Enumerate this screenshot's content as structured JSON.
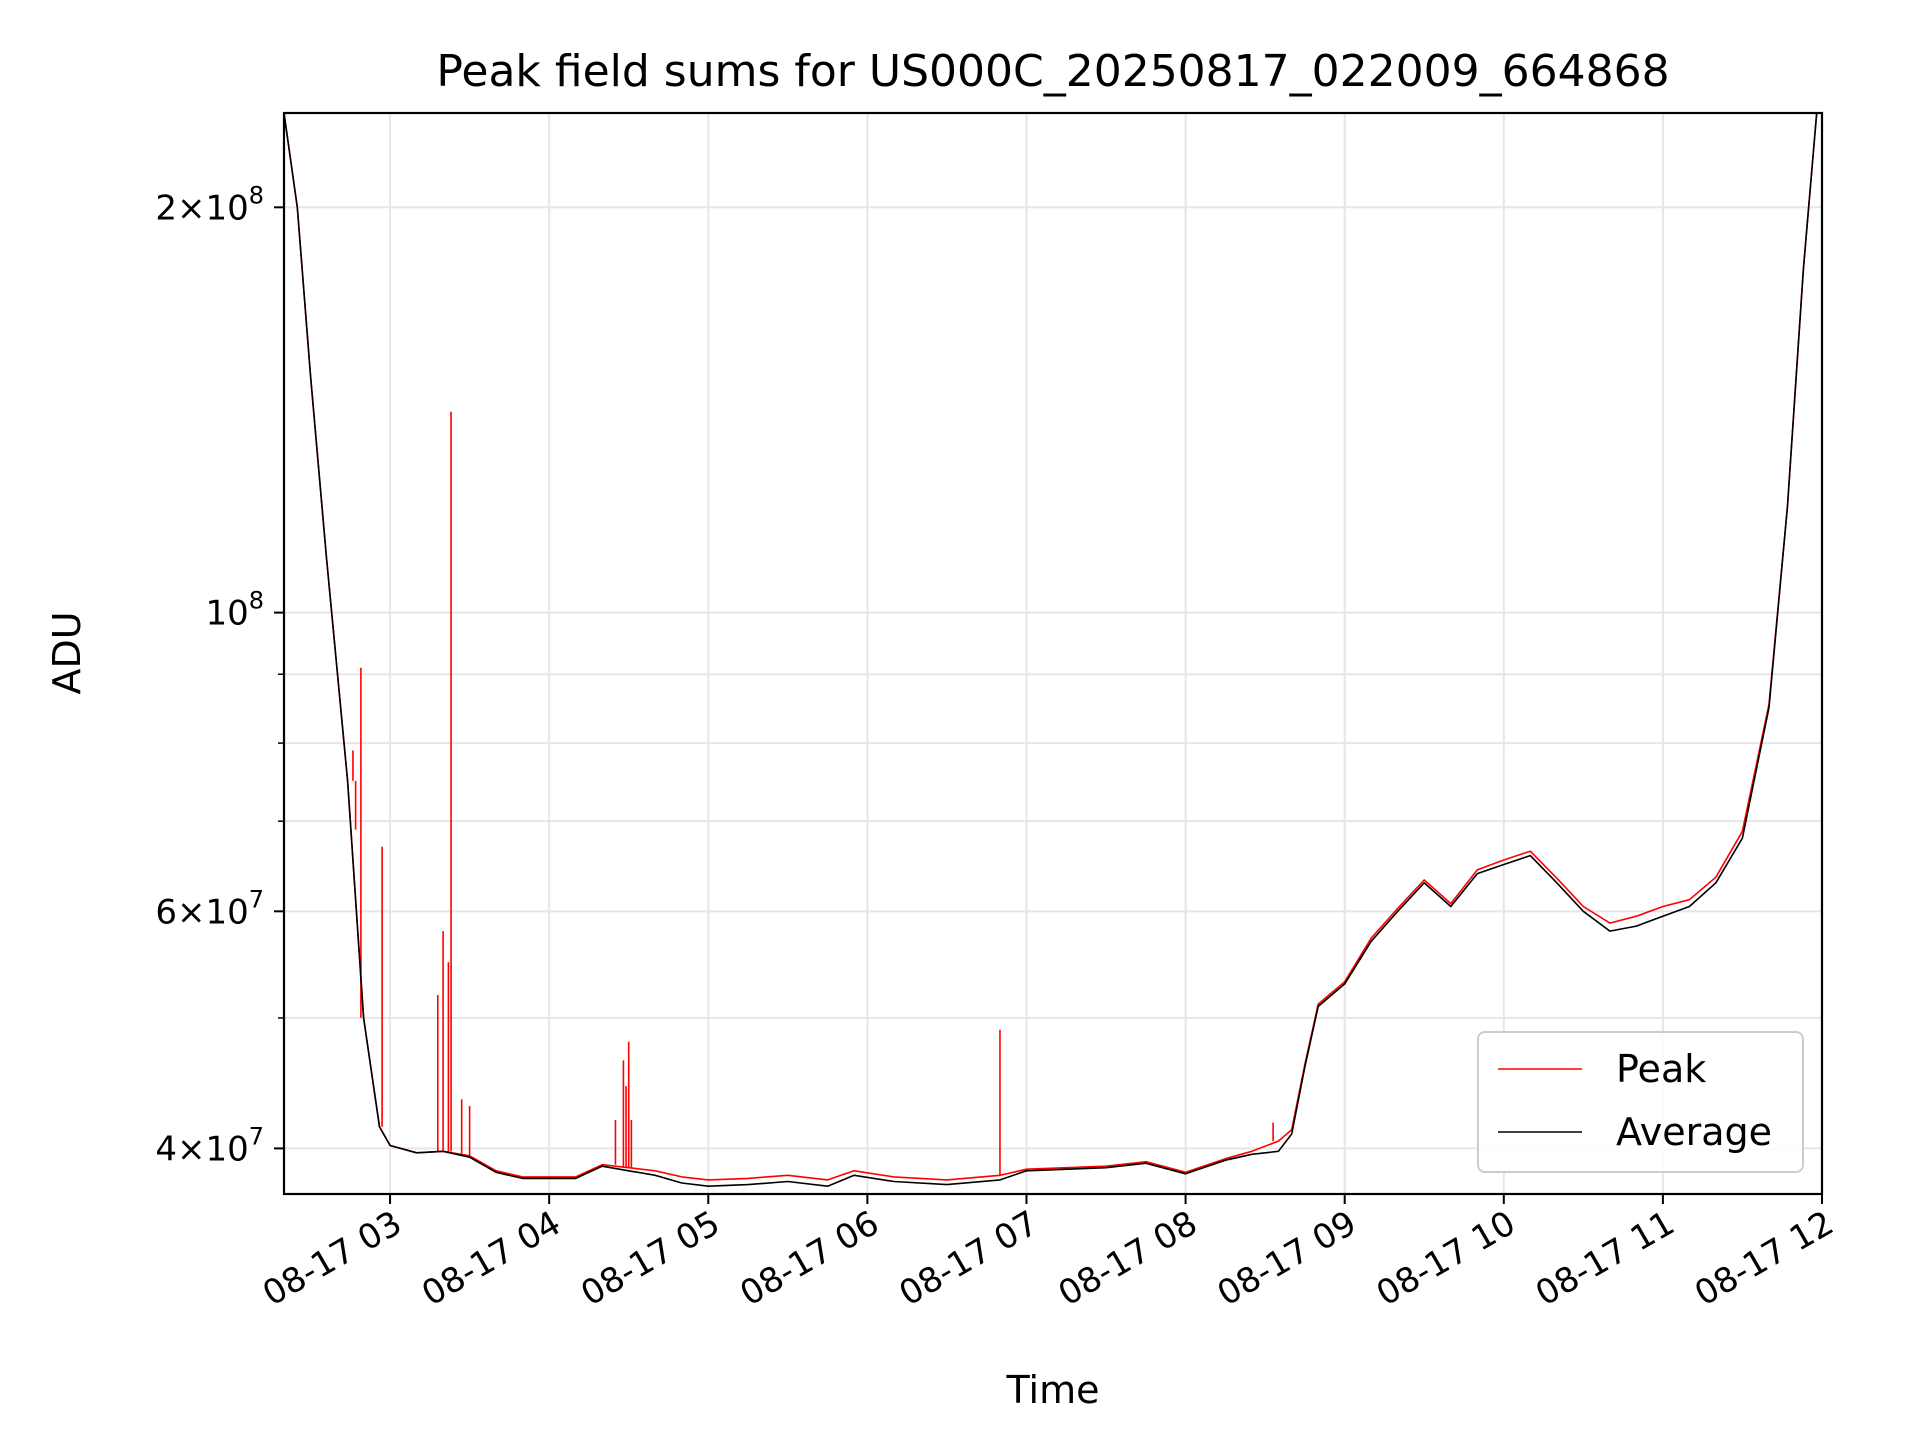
{
  "chart_data": {
    "type": "line",
    "title": "Peak field sums for US000C_20250817_022009_664868",
    "xlabel": "Time",
    "ylabel": "ADU",
    "yscale": "log",
    "grid": true,
    "legend_placement": "lower-right",
    "xlim": [
      "2025-08-17 02:20",
      "2025-08-17 12:00"
    ],
    "ylim": [
      37000000,
      235000000
    ],
    "x_ticks": [
      {
        "t": "2025-08-17 03:00",
        "label": "08-17 03"
      },
      {
        "t": "2025-08-17 04:00",
        "label": "08-17 04"
      },
      {
        "t": "2025-08-17 05:00",
        "label": "08-17 05"
      },
      {
        "t": "2025-08-17 06:00",
        "label": "08-17 06"
      },
      {
        "t": "2025-08-17 07:00",
        "label": "08-17 07"
      },
      {
        "t": "2025-08-17 08:00",
        "label": "08-17 08"
      },
      {
        "t": "2025-08-17 09:00",
        "label": "08-17 09"
      },
      {
        "t": "2025-08-17 10:00",
        "label": "08-17 10"
      },
      {
        "t": "2025-08-17 11:00",
        "label": "08-17 11"
      },
      {
        "t": "2025-08-17 12:00",
        "label": "08-17 12"
      }
    ],
    "y_major_ticks": [
      {
        "value": 40000000,
        "mantissa": "4",
        "exponent": "7"
      },
      {
        "value": 60000000,
        "mantissa": "6",
        "exponent": "7"
      },
      {
        "value": 100000000,
        "mantissa": "",
        "exponent": "8"
      },
      {
        "value": 200000000,
        "mantissa": "2",
        "exponent": "8"
      }
    ],
    "y_minor_ticks": [
      50000000,
      70000000,
      80000000,
      90000000
    ],
    "series": [
      {
        "name": "Average",
        "color": "#000000",
        "points": [
          [
            "2025-08-17 02:20",
            235000000
          ],
          [
            "2025-08-17 02:25",
            200000000
          ],
          [
            "2025-08-17 02:30",
            150000000
          ],
          [
            "2025-08-17 02:36",
            110000000
          ],
          [
            "2025-08-17 02:44",
            75000000
          ],
          [
            "2025-08-17 02:50",
            50000000
          ],
          [
            "2025-08-17 02:56",
            41500000
          ],
          [
            "2025-08-17 03:00",
            40200000
          ],
          [
            "2025-08-17 03:10",
            39700000
          ],
          [
            "2025-08-17 03:20",
            39800000
          ],
          [
            "2025-08-17 03:30",
            39400000
          ],
          [
            "2025-08-17 03:40",
            38400000
          ],
          [
            "2025-08-17 03:50",
            38000000
          ],
          [
            "2025-08-17 04:00",
            38000000
          ],
          [
            "2025-08-17 04:10",
            38000000
          ],
          [
            "2025-08-17 04:20",
            38800000
          ],
          [
            "2025-08-17 04:30",
            38500000
          ],
          [
            "2025-08-17 04:40",
            38200000
          ],
          [
            "2025-08-17 04:50",
            37700000
          ],
          [
            "2025-08-17 05:00",
            37500000
          ],
          [
            "2025-08-17 05:15",
            37600000
          ],
          [
            "2025-08-17 05:30",
            37800000
          ],
          [
            "2025-08-17 05:45",
            37500000
          ],
          [
            "2025-08-17 05:55",
            38200000
          ],
          [
            "2025-08-17 06:10",
            37800000
          ],
          [
            "2025-08-17 06:30",
            37600000
          ],
          [
            "2025-08-17 06:50",
            37900000
          ],
          [
            "2025-08-17 07:00",
            38500000
          ],
          [
            "2025-08-17 07:30",
            38700000
          ],
          [
            "2025-08-17 07:45",
            39000000
          ],
          [
            "2025-08-17 08:00",
            38300000
          ],
          [
            "2025-08-17 08:15",
            39200000
          ],
          [
            "2025-08-17 08:25",
            39600000
          ],
          [
            "2025-08-17 08:35",
            39800000
          ],
          [
            "2025-08-17 08:40",
            41000000
          ],
          [
            "2025-08-17 08:45",
            46000000
          ],
          [
            "2025-08-17 08:50",
            51000000
          ],
          [
            "2025-08-17 09:00",
            53000000
          ],
          [
            "2025-08-17 09:10",
            57000000
          ],
          [
            "2025-08-17 09:20",
            60000000
          ],
          [
            "2025-08-17 09:30",
            63000000
          ],
          [
            "2025-08-17 09:40",
            60500000
          ],
          [
            "2025-08-17 09:50",
            64000000
          ],
          [
            "2025-08-17 10:00",
            65000000
          ],
          [
            "2025-08-17 10:10",
            66000000
          ],
          [
            "2025-08-17 10:20",
            63000000
          ],
          [
            "2025-08-17 10:30",
            60000000
          ],
          [
            "2025-08-17 10:40",
            58000000
          ],
          [
            "2025-08-17 10:50",
            58500000
          ],
          [
            "2025-08-17 11:00",
            59500000
          ],
          [
            "2025-08-17 11:10",
            60500000
          ],
          [
            "2025-08-17 11:20",
            63000000
          ],
          [
            "2025-08-17 11:30",
            68000000
          ],
          [
            "2025-08-17 11:40",
            85000000
          ],
          [
            "2025-08-17 11:47",
            120000000
          ],
          [
            "2025-08-17 11:53",
            180000000
          ],
          [
            "2025-08-17 11:58",
            235000000
          ]
        ]
      },
      {
        "name": "Peak",
        "color": "#ff0000",
        "points": [
          [
            "2025-08-17 02:20",
            235000000
          ],
          [
            "2025-08-17 02:25",
            200000000
          ],
          [
            "2025-08-17 02:30",
            150000000
          ],
          [
            "2025-08-17 02:36",
            110000000
          ],
          [
            "2025-08-17 02:44",
            75000000
          ],
          [
            "2025-08-17 02:50",
            50000000
          ],
          [
            "2025-08-17 02:56",
            41500000
          ],
          [
            "2025-08-17 03:00",
            40200000
          ],
          [
            "2025-08-17 03:10",
            39700000
          ],
          [
            "2025-08-17 03:20",
            39800000
          ],
          [
            "2025-08-17 03:30",
            39500000
          ],
          [
            "2025-08-17 03:40",
            38500000
          ],
          [
            "2025-08-17 03:50",
            38100000
          ],
          [
            "2025-08-17 04:00",
            38100000
          ],
          [
            "2025-08-17 04:10",
            38100000
          ],
          [
            "2025-08-17 04:20",
            38900000
          ],
          [
            "2025-08-17 04:30",
            38700000
          ],
          [
            "2025-08-17 04:40",
            38500000
          ],
          [
            "2025-08-17 04:50",
            38100000
          ],
          [
            "2025-08-17 05:00",
            37900000
          ],
          [
            "2025-08-17 05:15",
            38000000
          ],
          [
            "2025-08-17 05:30",
            38200000
          ],
          [
            "2025-08-17 05:45",
            37900000
          ],
          [
            "2025-08-17 05:55",
            38500000
          ],
          [
            "2025-08-17 06:10",
            38100000
          ],
          [
            "2025-08-17 06:30",
            37900000
          ],
          [
            "2025-08-17 06:50",
            38200000
          ],
          [
            "2025-08-17 07:00",
            38600000
          ],
          [
            "2025-08-17 07:30",
            38800000
          ],
          [
            "2025-08-17 07:45",
            39100000
          ],
          [
            "2025-08-17 08:00",
            38400000
          ],
          [
            "2025-08-17 08:15",
            39300000
          ],
          [
            "2025-08-17 08:25",
            39800000
          ],
          [
            "2025-08-17 08:35",
            40500000
          ],
          [
            "2025-08-17 08:40",
            41300000
          ],
          [
            "2025-08-17 08:45",
            46200000
          ],
          [
            "2025-08-17 08:50",
            51200000
          ],
          [
            "2025-08-17 09:00",
            53200000
          ],
          [
            "2025-08-17 09:10",
            57300000
          ],
          [
            "2025-08-17 09:20",
            60300000
          ],
          [
            "2025-08-17 09:30",
            63300000
          ],
          [
            "2025-08-17 09:40",
            60800000
          ],
          [
            "2025-08-17 09:50",
            64400000
          ],
          [
            "2025-08-17 10:00",
            65500000
          ],
          [
            "2025-08-17 10:10",
            66500000
          ],
          [
            "2025-08-17 10:20",
            63500000
          ],
          [
            "2025-08-17 10:30",
            60500000
          ],
          [
            "2025-08-17 10:40",
            58800000
          ],
          [
            "2025-08-17 10:50",
            59500000
          ],
          [
            "2025-08-17 11:00",
            60500000
          ],
          [
            "2025-08-17 11:10",
            61200000
          ],
          [
            "2025-08-17 11:20",
            63600000
          ],
          [
            "2025-08-17 11:30",
            68800000
          ],
          [
            "2025-08-17 11:40",
            85500000
          ],
          [
            "2025-08-17 11:47",
            120000000
          ],
          [
            "2025-08-17 11:53",
            180000000
          ],
          [
            "2025-08-17 11:58",
            235000000
          ]
        ],
        "spikes": [
          [
            "2025-08-17 02:46",
            79000000
          ],
          [
            "2025-08-17 02:47",
            69000000
          ],
          [
            "2025-08-17 02:49",
            91000000
          ],
          [
            "2025-08-17 02:57",
            67000000
          ],
          [
            "2025-08-17 03:18",
            52000000
          ],
          [
            "2025-08-17 03:20",
            58000000
          ],
          [
            "2025-08-17 03:22",
            55000000
          ],
          [
            "2025-08-17 03:23",
            141000000
          ],
          [
            "2025-08-17 03:27",
            43500000
          ],
          [
            "2025-08-17 03:30",
            43000000
          ],
          [
            "2025-08-17 04:25",
            42000000
          ],
          [
            "2025-08-17 04:28",
            46500000
          ],
          [
            "2025-08-17 04:29",
            44500000
          ],
          [
            "2025-08-17 04:30",
            48000000
          ],
          [
            "2025-08-17 04:31",
            42000000
          ],
          [
            "2025-08-17 06:50",
            49000000
          ],
          [
            "2025-08-17 08:33",
            41800000
          ]
        ]
      }
    ]
  }
}
